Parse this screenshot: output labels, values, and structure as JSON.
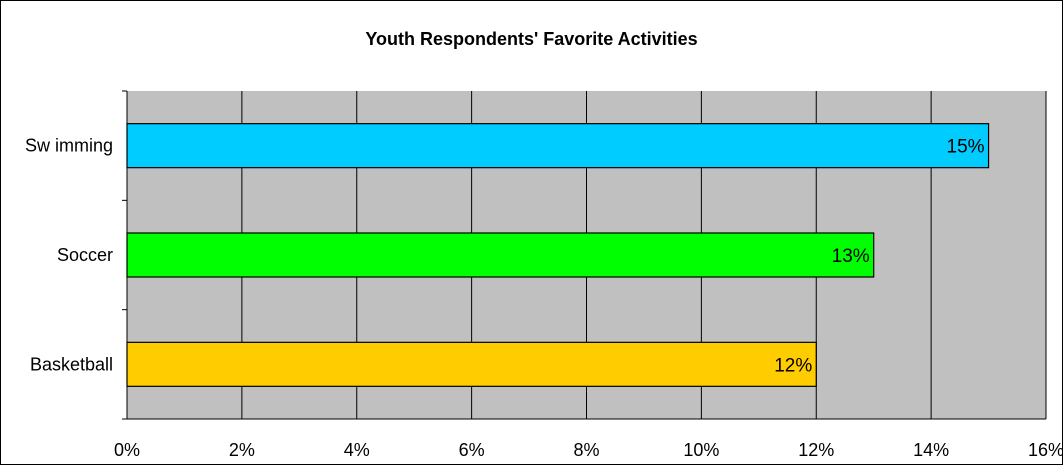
{
  "chart_data": {
    "type": "bar",
    "orientation": "horizontal",
    "title": "Youth Respondents' Favorite Activities",
    "categories": [
      "Swimming",
      "Soccer",
      "Basketball"
    ],
    "category_display": [
      "Sw imming",
      "Soccer",
      "Basketball"
    ],
    "values": [
      15,
      13,
      12
    ],
    "data_labels": [
      "15%",
      "13%",
      "12%"
    ],
    "bar_colors": [
      "#00CCFF",
      "#00FF00",
      "#FFCC00"
    ],
    "xlim": [
      0,
      16
    ],
    "x_ticks": [
      0,
      2,
      4,
      6,
      8,
      10,
      12,
      14,
      16
    ],
    "x_tick_labels": [
      "0%",
      "2%",
      "4%",
      "6%",
      "8%",
      "10%",
      "12%",
      "14%",
      "16%"
    ],
    "plot_background": "#C0C0C0",
    "grid": true,
    "legend": "none"
  }
}
